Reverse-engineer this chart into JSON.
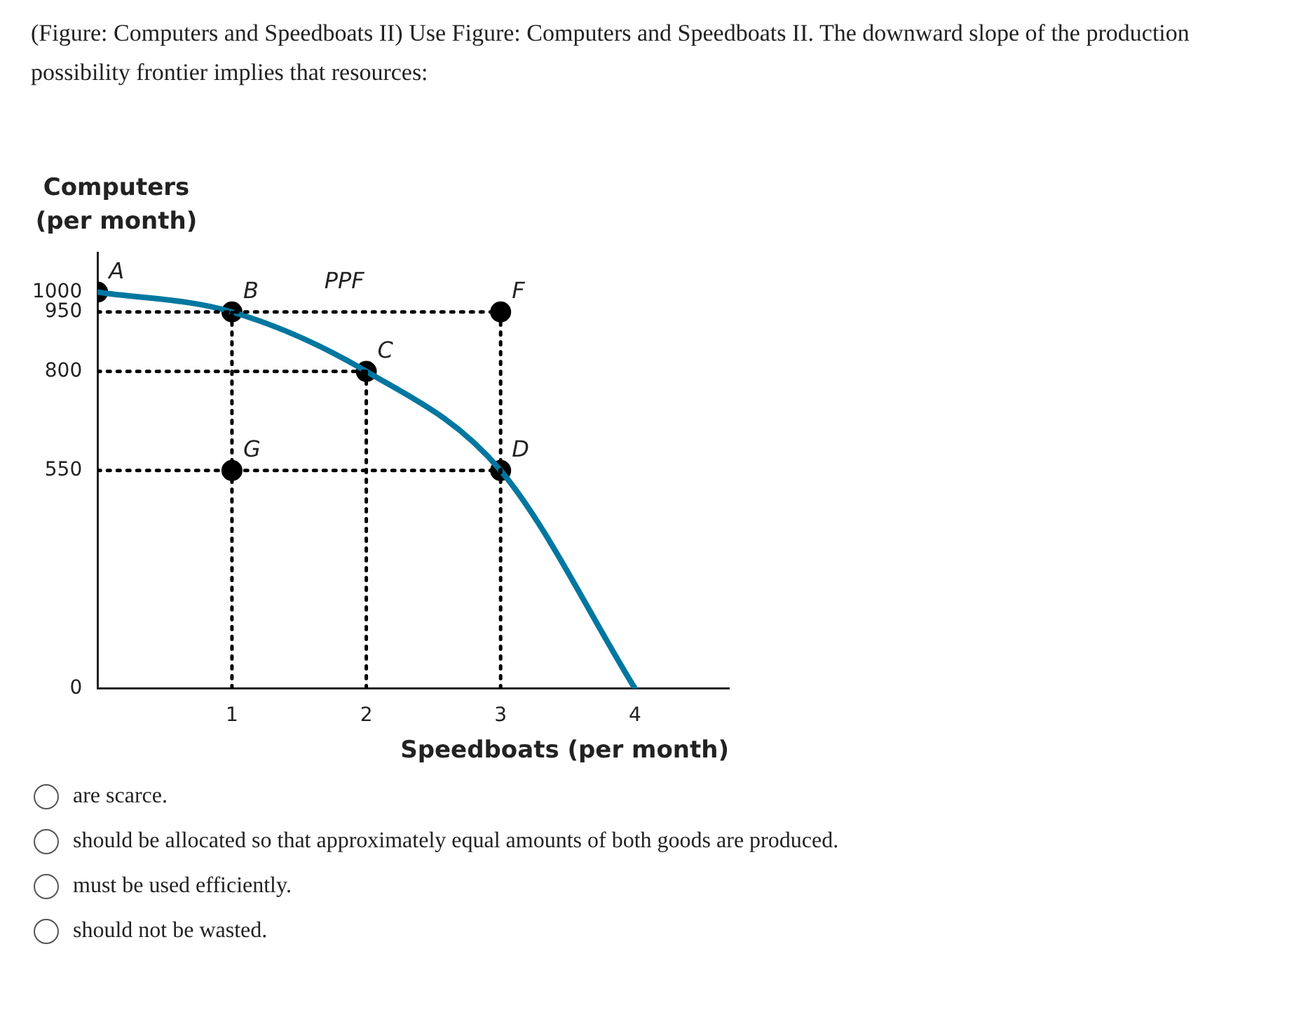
{
  "chart_data": {
    "type": "line",
    "title": "(Figure: Computers and Speedboats II) Use Figure: Computers and Speedboats II. The downward slope of the production possibility frontier implies that resources:",
    "xlabel": "Speedboats (per month)",
    "ylabel": "Computers (per month)",
    "xlim": [
      0,
      4.7
    ],
    "ylim": [
      0,
      1100
    ],
    "xticks": [
      1,
      2,
      3,
      4
    ],
    "yticks": [
      0,
      550,
      800,
      950,
      1000
    ],
    "grid": false,
    "legend": false,
    "series": [
      {
        "x": [
          0,
          3
        ],
        "values": [
          950,
          950
        ],
        "color": "#000000",
        "line_style": "dotted",
        "marker": "none"
      },
      {
        "x": [
          0,
          2
        ],
        "values": [
          800,
          800
        ],
        "color": "#000000",
        "line_style": "dotted",
        "marker": "none"
      },
      {
        "x": [
          0,
          3
        ],
        "values": [
          550,
          550
        ],
        "color": "#000000",
        "line_style": "dotted",
        "marker": "none"
      },
      {
        "x": [
          1,
          1
        ],
        "values": [
          0,
          950
        ],
        "color": "#000000",
        "line_style": "dotted",
        "marker": "none"
      },
      {
        "x": [
          2,
          2
        ],
        "values": [
          0,
          800
        ],
        "color": "#000000",
        "line_style": "dotted",
        "marker": "none"
      },
      {
        "x": [
          3,
          3
        ],
        "values": [
          0,
          950
        ],
        "color": "#000000",
        "line_style": "dotted",
        "marker": "none"
      },
      {
        "name": "PPF",
        "x": [
          0,
          1,
          2,
          3,
          4
        ],
        "values": [
          1000,
          950,
          800,
          550,
          0
        ],
        "color": "#0077a0",
        "line_style": "solid",
        "marker": "none"
      },
      {
        "type": "scatter",
        "x": [
          0,
          1,
          2,
          3,
          3,
          1
        ],
        "values": [
          1000,
          950,
          800,
          550,
          950,
          550
        ],
        "color": "#000000",
        "marker": "circle"
      }
    ],
    "annotations": [
      {
        "text": "A",
        "x": 0,
        "y": 1000
      },
      {
        "text": "B",
        "x": 1,
        "y": 950
      },
      {
        "text": "C",
        "x": 2,
        "y": 800
      },
      {
        "text": "D",
        "x": 3,
        "y": 550
      },
      {
        "text": "F",
        "x": 3,
        "y": 950
      },
      {
        "text": "G",
        "x": 1,
        "y": 550
      },
      "are scarce.",
      "should be allocated so that approximately equal amounts of both goods are produced.",
      "must be used efficiently.",
      "should not be wasted."
    ]
  }
}
